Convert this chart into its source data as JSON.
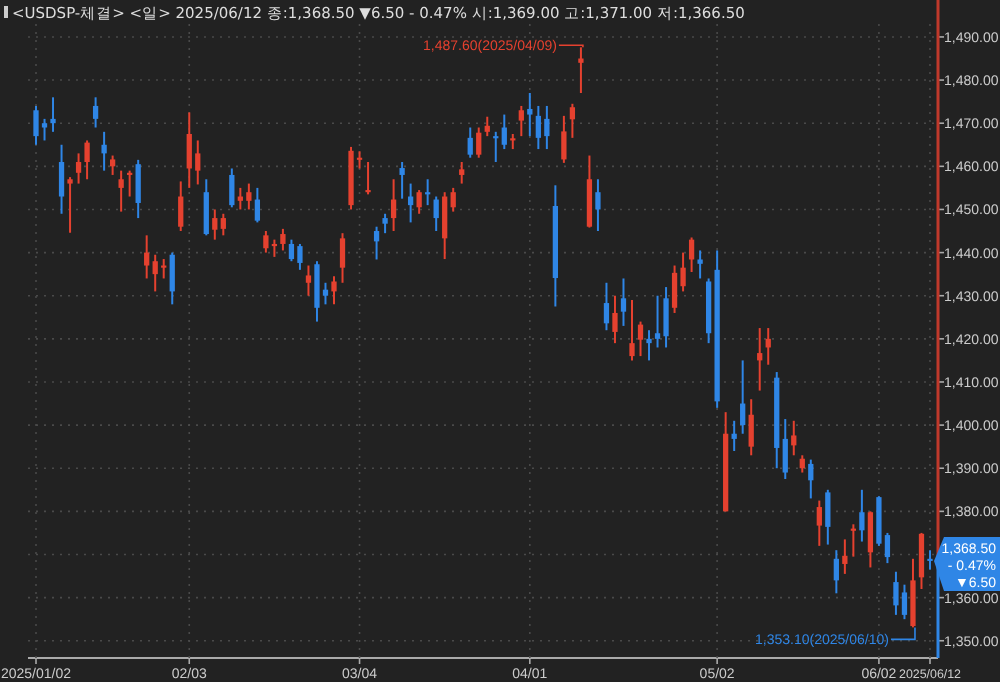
{
  "chart_data": {
    "type": "candlestick",
    "title": "<USDSP-체결> <일> 2025/06/12 종:1,368.50 ▼6.50 - 0.47% 시:1,369.00 고:1,371.00 저:1,366.50",
    "categories": [
      "2025/01/02",
      null,
      null,
      null,
      null,
      null,
      null,
      null,
      null,
      null,
      null,
      null,
      null,
      null,
      null,
      null,
      null,
      null,
      "02/03",
      null,
      null,
      null,
      null,
      null,
      null,
      null,
      null,
      null,
      null,
      null,
      null,
      null,
      null,
      null,
      null,
      null,
      null,
      null,
      "03/04",
      null,
      null,
      null,
      null,
      null,
      null,
      null,
      null,
      null,
      null,
      null,
      null,
      null,
      null,
      null,
      null,
      null,
      null,
      null,
      "04/01",
      null,
      null,
      null,
      null,
      null,
      null,
      null,
      null,
      null,
      null,
      null,
      null,
      null,
      null,
      null,
      null,
      null,
      null,
      null,
      null,
      null,
      "05/02",
      null,
      null,
      null,
      null,
      null,
      null,
      null,
      null,
      null,
      null,
      null,
      null,
      null,
      null,
      null,
      null,
      null,
      null,
      "06/02",
      null,
      null,
      null,
      null,
      null,
      "2025/06/12"
    ],
    "ohlc": [
      [
        1473,
        1474,
        1465,
        1467
      ],
      [
        1470,
        1471,
        1466,
        1469
      ],
      [
        1471,
        1476,
        1468,
        1470
      ],
      [
        1461,
        1465,
        1449,
        1453
      ],
      [
        1456,
        1457.5,
        1444.6,
        1457
      ],
      [
        1458.5,
        1463,
        1456,
        1461
      ],
      [
        1461,
        1466,
        1457,
        1465.5
      ],
      [
        1474,
        1476,
        1469,
        1471
      ],
      [
        1465,
        1468,
        1459,
        1463
      ],
      [
        1460,
        1462.5,
        1458,
        1461.6
      ],
      [
        1455,
        1459,
        1449.5,
        1457
      ],
      [
        1458,
        1459,
        1453,
        1458.5
      ],
      [
        1460.5,
        1461.5,
        1448,
        1451.5
      ],
      [
        1437,
        1444,
        1434,
        1440
      ],
      [
        1435,
        1439.5,
        1431,
        1438
      ],
      [
        1436.5,
        1438.5,
        1434,
        1437
      ],
      [
        1439.5,
        1440,
        1428,
        1431
      ],
      [
        1446,
        1456.5,
        1445,
        1453
      ],
      [
        1459.5,
        1472.5,
        1455,
        1467.5
      ],
      [
        1459,
        1466,
        1455.8,
        1463
      ],
      [
        1454,
        1457,
        1444,
        1444.3
      ],
      [
        1445.3,
        1450,
        1443,
        1448
      ],
      [
        1445.5,
        1449,
        1444,
        1448
      ],
      [
        1458,
        1459.5,
        1450.5,
        1451
      ],
      [
        1452,
        1455,
        1450,
        1453
      ],
      [
        1452,
        1456,
        1450,
        1454
      ],
      [
        1452.3,
        1455,
        1447,
        1447.4
      ],
      [
        1441,
        1445,
        1440,
        1444
      ],
      [
        1441.5,
        1443,
        1439,
        1442
      ],
      [
        1442,
        1445.5,
        1440.5,
        1444.3
      ],
      [
        1442,
        1443,
        1438,
        1438.5
      ],
      [
        1441.5,
        1442,
        1436,
        1437.6
      ],
      [
        1433,
        1437,
        1430,
        1434.7
      ],
      [
        1437.3,
        1438,
        1424,
        1427.2
      ],
      [
        1431.4,
        1433,
        1428,
        1430
      ],
      [
        1431,
        1434.5,
        1428,
        1433.3
      ],
      [
        1436.5,
        1444.5,
        1433,
        1443.3
      ],
      [
        1451,
        1464.5,
        1450,
        1463.6
      ],
      [
        1461.5,
        1463.5,
        1459.5,
        1462
      ],
      [
        1454,
        1461,
        1453.5,
        1454.5
      ],
      [
        1445,
        1446,
        1438.4,
        1442.6
      ],
      [
        1448,
        1449,
        1444.5,
        1446.7
      ],
      [
        1448,
        1457,
        1445,
        1452.3
      ],
      [
        1459.6,
        1461,
        1452.5,
        1458
      ],
      [
        1453,
        1456,
        1447,
        1451
      ],
      [
        1450.5,
        1454.5,
        1449,
        1454
      ],
      [
        1454,
        1457,
        1451,
        1453.5
      ],
      [
        1452.3,
        1453,
        1445,
        1448
      ],
      [
        1443.3,
        1454,
        1438.5,
        1453
      ],
      [
        1450.5,
        1455,
        1449.5,
        1454
      ],
      [
        1458,
        1461,
        1456,
        1459.3
      ],
      [
        1466.6,
        1469,
        1462,
        1462.7
      ],
      [
        1462.7,
        1469,
        1462,
        1467.8
      ],
      [
        1468,
        1471.5,
        1467,
        1469.4
      ],
      [
        1467,
        1468,
        1461,
        1466.5
      ],
      [
        1469,
        1472,
        1464,
        1465
      ],
      [
        1466,
        1467.5,
        1464,
        1466.5
      ],
      [
        1470.6,
        1474,
        1467,
        1473
      ],
      [
        1473.3,
        1477,
        1467,
        1472
      ],
      [
        1471.7,
        1474,
        1464,
        1466.6
      ],
      [
        1471,
        1474,
        1464,
        1467
      ],
      [
        1450.8,
        1455.6,
        1427.5,
        1434.1
      ],
      [
        1461.6,
        1471.7,
        1460.8,
        1468.1
      ],
      [
        1470.9,
        1474.5,
        1466.6,
        1473.7
      ],
      [
        1484,
        1487.6,
        1477,
        1485
      ],
      [
        1446,
        1462.5,
        1445.8,
        1457
      ],
      [
        1454,
        1457,
        1445,
        1450
      ],
      [
        1428.3,
        1433,
        1422,
        1423.6
      ],
      [
        1421.6,
        1430,
        1419,
        1426
      ],
      [
        1429.4,
        1434,
        1423,
        1426.3
      ],
      [
        1416,
        1429,
        1415,
        1419
      ],
      [
        1419.8,
        1424,
        1416,
        1423.3
      ],
      [
        1420,
        1422,
        1415,
        1419
      ],
      [
        1421.3,
        1430,
        1418,
        1420
      ],
      [
        1429.4,
        1432,
        1418,
        1420.6
      ],
      [
        1427.2,
        1437,
        1426,
        1435.3
      ],
      [
        1432.2,
        1440,
        1431,
        1436.5
      ],
      [
        1438.4,
        1443.5,
        1435.5,
        1443
      ],
      [
        1438.4,
        1440.5,
        1434,
        1437.4
      ],
      [
        1433.3,
        1434,
        1419,
        1421.3
      ],
      [
        1436,
        1440.5,
        1404,
        1405.5
      ],
      [
        1380,
        1403,
        1380,
        1398
      ],
      [
        1398,
        1401,
        1394,
        1396.8
      ],
      [
        1405,
        1415,
        1398,
        1400
      ],
      [
        1395,
        1406,
        1393,
        1402.4
      ],
      [
        1415,
        1422.5,
        1408,
        1416.7
      ],
      [
        1418,
        1422.5,
        1414,
        1420
      ],
      [
        1411,
        1412.3,
        1390,
        1394.7
      ],
      [
        1396.8,
        1401.4,
        1387.5,
        1389
      ],
      [
        1395.3,
        1401,
        1393,
        1397.6
      ],
      [
        1390,
        1393,
        1389,
        1392.2
      ],
      [
        1391,
        1392,
        1383,
        1387.2
      ],
      [
        1376.7,
        1382.5,
        1372,
        1381
      ],
      [
        1384.4,
        1385,
        1372.3,
        1376.4
      ],
      [
        1369,
        1371,
        1361,
        1364
      ],
      [
        1367.8,
        1373.5,
        1365.5,
        1369.7
      ],
      [
        1375.5,
        1377,
        1369.5,
        1376
      ],
      [
        1379.8,
        1385,
        1373,
        1375.6
      ],
      [
        1370.5,
        1380,
        1367,
        1379.8
      ],
      [
        1383.3,
        1383.5,
        1372,
        1372.5
      ],
      [
        1374.5,
        1375,
        1368,
        1369.4
      ],
      [
        1363.6,
        1366,
        1356,
        1358.2
      ],
      [
        1361.2,
        1363,
        1355,
        1356
      ],
      [
        1353.4,
        1369,
        1353.1,
        1364
      ],
      [
        1364.7,
        1375,
        1362,
        1374.8
      ],
      [
        1369,
        1371,
        1366.5,
        1368.5
      ]
    ],
    "colors": [
      "#2f86e6",
      "#2f86e6",
      "#2f86e6",
      "#2f86e6",
      "#e5412f",
      "#e5412f",
      "#e5412f",
      "#2f86e6",
      "#2f86e6",
      "#e5412f",
      "#e5412f",
      "#e5412f",
      "#2f86e6",
      "#e5412f",
      "#e5412f",
      "#e5412f",
      "#2f86e6",
      "#e5412f",
      "#e5412f",
      "#e5412f",
      "#2f86e6",
      "#e5412f",
      "#e5412f",
      "#2f86e6",
      "#e5412f",
      "#e5412f",
      "#2f86e6",
      "#e5412f",
      "#e5412f",
      "#e5412f",
      "#2f86e6",
      "#2f86e6",
      "#e5412f",
      "#2f86e6",
      "#2f86e6",
      "#e5412f",
      "#e5412f",
      "#e5412f",
      "#e5412f",
      "#e5412f",
      "#2f86e6",
      "#2f86e6",
      "#e5412f",
      "#2f86e6",
      "#2f86e6",
      "#e5412f",
      "#2f86e6",
      "#2f86e6",
      "#e5412f",
      "#e5412f",
      "#e5412f",
      "#2f86e6",
      "#e5412f",
      "#e5412f",
      "#2f86e6",
      "#2f86e6",
      "#e5412f",
      "#e5412f",
      "#2f86e6",
      "#2f86e6",
      "#2f86e6",
      "#2f86e6",
      "#e5412f",
      "#e5412f",
      "#e5412f",
      "#e5412f",
      "#2f86e6",
      "#2f86e6",
      "#e5412f",
      "#2f86e6",
      "#e5412f",
      "#e5412f",
      "#2f86e6",
      "#2f86e6",
      "#2f86e6",
      "#e5412f",
      "#e5412f",
      "#e5412f",
      "#2f86e6",
      "#2f86e6",
      "#2f86e6",
      "#e5412f",
      "#2f86e6",
      "#2f86e6",
      "#e5412f",
      "#e5412f",
      "#e5412f",
      "#2f86e6",
      "#2f86e6",
      "#e5412f",
      "#e5412f",
      "#2f86e6",
      "#e5412f",
      "#2f86e6",
      "#2f86e6",
      "#e5412f",
      "#e5412f",
      "#2f86e6",
      "#e5412f",
      "#2f86e6",
      "#2f86e6",
      "#2f86e6",
      "#2f86e6",
      "#e5412f",
      "#e5412f",
      "#2f86e6"
    ],
    "ylim": [
      1346,
      1493
    ],
    "yticks": [
      {
        "value": 1350,
        "label": "1,350.00"
      },
      {
        "value": 1360,
        "label": "1,360.00"
      },
      {
        "value": 1370,
        "label": null
      },
      {
        "value": 1380,
        "label": "1,380.00"
      },
      {
        "value": 1390,
        "label": "1,390.00"
      },
      {
        "value": 1400,
        "label": "1,400.00"
      },
      {
        "value": 1410,
        "label": "1,410.00"
      },
      {
        "value": 1420,
        "label": "1,420.00"
      },
      {
        "value": 1430,
        "label": "1,430.00"
      },
      {
        "value": 1440,
        "label": "1,440.00"
      },
      {
        "value": 1450,
        "label": "1,450.00"
      },
      {
        "value": 1460,
        "label": "1,460.00"
      },
      {
        "value": 1470,
        "label": "1,470.00"
      },
      {
        "value": 1480,
        "label": "1,480.00"
      },
      {
        "value": 1490,
        "label": "1,490.00"
      }
    ],
    "grid": true,
    "annotations": [
      "1,487.60(2025/04/09)",
      "1,353.10(2025/06/10)",
      "1,368.50 - 0.47% ▼6.50"
    ]
  }
}
